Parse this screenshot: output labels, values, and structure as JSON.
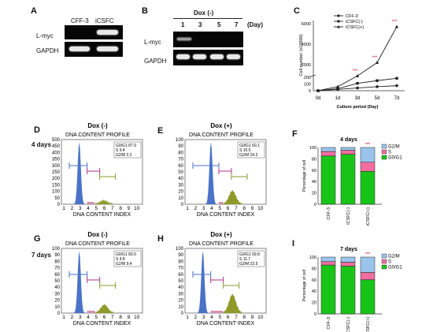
{
  "panels": {
    "A": "A",
    "B": "B",
    "C": "C",
    "D": "D",
    "E": "E",
    "F": "F",
    "G": "G",
    "H": "H",
    "I": "I"
  },
  "panel_a": {
    "col1": "CFF-3",
    "col2": "iCSFC",
    "row1": "L-myc",
    "row2": "GAPDH"
  },
  "panel_b": {
    "header": "Dox (-)",
    "days": [
      "1",
      "3",
      "5",
      "7"
    ],
    "day_unit": "(Day)",
    "row1": "L-myc",
    "row2": "GAPDH"
  },
  "row_labels": {
    "four": "4 days",
    "seven": "7 days"
  },
  "flow": {
    "title": "DNA CONTENT PROFILE",
    "xlabel": "DNA CONTENT INDEX",
    "yticks": [
      "0",
      "50",
      "100",
      "150",
      "200",
      "250",
      "300",
      "350",
      "400",
      "450",
      "500"
    ],
    "yticks_small": [
      "0",
      "10",
      "20",
      "30",
      "40",
      "50",
      "60",
      "70",
      "80",
      "90",
      "100"
    ],
    "xticks": [
      "1",
      "2",
      "3",
      "4",
      "5",
      "6",
      "7",
      "8",
      "9",
      "10"
    ],
    "D": {
      "header": "Dox (-)",
      "stats": [
        "G0/G1 87.9",
        "S 9.4",
        "G2/M 2.2"
      ]
    },
    "E": {
      "header": "Dox (+)",
      "stats": [
        "G0/G1 60.1",
        "S 10.5",
        "G2/M 24.2"
      ]
    },
    "G": {
      "header": "Dox (-)",
      "stats": [
        "G0/G1 83.6",
        "S 4.8",
        "G2/M 9.4"
      ]
    },
    "H": {
      "header": "Dox (+)",
      "stats": [
        "G0/G1 59.8",
        "S 11.7",
        "G2/M 23.5"
      ]
    }
  },
  "colors": {
    "g0g1": "#19c419",
    "s": "#f06ea0",
    "g2m": "#9bc4ec",
    "histo": "#4a73c8",
    "histo_s": "#8e9b2a",
    "bar_g0": "#4a86d9",
    "bar_s": "#b0338a",
    "bar_g2": "#8b9a2c"
  },
  "chart_data": [
    {
      "type": "line",
      "xlabel": "Culture period (Day)",
      "ylabel": "Cell number (x10000)",
      "categories": [
        "0d",
        "1d",
        "3d",
        "5d",
        "7d"
      ],
      "yticks_lower": [
        "0",
        "100",
        "200"
      ],
      "yticks_upper": [
        "2000",
        "4000",
        "6000"
      ],
      "series": [
        {
          "name": "CFF-3",
          "values": [
            0,
            20,
            40,
            60,
            75
          ]
        },
        {
          "name": "iCSFC(-)",
          "values": [
            0,
            30,
            110,
            150,
            185
          ]
        },
        {
          "name": "iCSFC(+)",
          "values": [
            0,
            60,
            900,
            2200,
            5700
          ]
        }
      ],
      "annotations": [
        "***",
        "***",
        "***"
      ]
    },
    {
      "type": "bar",
      "title": "4 days",
      "ylabel": "Percentage of cell",
      "categories": [
        "CFF-3",
        "iCSFC(-)",
        "iCSFC(+)"
      ],
      "yticks": [
        "0",
        "20",
        "40",
        "60",
        "80",
        "100"
      ],
      "series": [
        {
          "name": "G0/G1",
          "values": [
            85,
            88,
            58
          ]
        },
        {
          "name": "S",
          "values": [
            8,
            7,
            16
          ]
        },
        {
          "name": "G2/M",
          "values": [
            7,
            5,
            26
          ]
        }
      ],
      "annotation": "***"
    },
    {
      "type": "bar",
      "title": "7 days",
      "ylabel": "Percentage of cell",
      "categories": [
        "CFF-3",
        "iCSFC(-)",
        "iCSFC(+)"
      ],
      "yticks": [
        "0",
        "20",
        "40",
        "60",
        "80",
        "100"
      ],
      "series": [
        {
          "name": "G0/G1",
          "values": [
            86,
            84,
            60
          ]
        },
        {
          "name": "S",
          "values": [
            6,
            7,
            13
          ]
        },
        {
          "name": "G2/M",
          "values": [
            8,
            9,
            27
          ]
        }
      ],
      "annotation": "***"
    }
  ]
}
